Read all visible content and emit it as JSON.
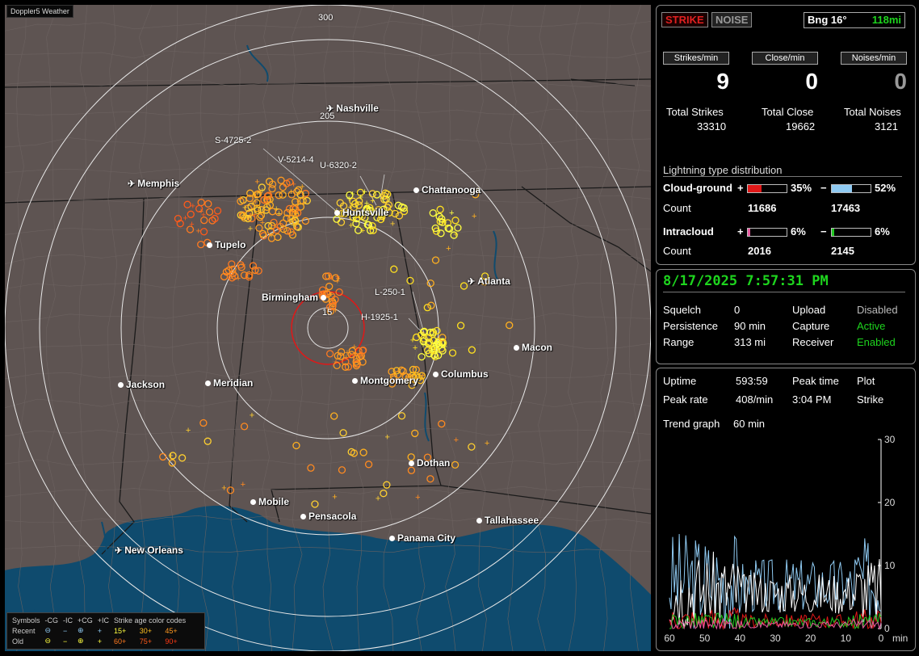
{
  "app": {
    "title": "Doppler5 Weather"
  },
  "colors": {
    "cg_positive": "#e01818",
    "cg_negative": "#8fcaf2",
    "ic_positive": "#e85aa0",
    "ic_negative": "#22c822",
    "status_green": "#1ed51e"
  },
  "map": {
    "ring_labels": [
      "300",
      "205",
      "15"
    ],
    "cell_labels": [
      "S-4725-2",
      "V-5214-4",
      "U-6320-2",
      "L-250-1",
      "H-1925-1"
    ],
    "cities": [
      {
        "name": "Nashville",
        "icon": "airport-icon"
      },
      {
        "name": "Memphis",
        "icon": "airport-icon"
      },
      {
        "name": "Chattanooga",
        "icon": "dot-icon"
      },
      {
        "name": "Huntsville",
        "icon": "dot-icon"
      },
      {
        "name": "Tupelo",
        "icon": "dot-icon"
      },
      {
        "name": "Atlanta",
        "icon": "airport-icon"
      },
      {
        "name": "Birmingham",
        "icon": "dot-icon"
      },
      {
        "name": "Macon",
        "icon": "dot-icon"
      },
      {
        "name": "Jackson",
        "icon": "dot-icon"
      },
      {
        "name": "Meridian",
        "icon": "dot-icon"
      },
      {
        "name": "Montgomery",
        "icon": "dot-icon"
      },
      {
        "name": "Columbus",
        "icon": "dot-icon"
      },
      {
        "name": "Dothan",
        "icon": "dot-icon"
      },
      {
        "name": "Mobile",
        "icon": "dot-icon"
      },
      {
        "name": "Pensacola",
        "icon": "dot-icon"
      },
      {
        "name": "Tallahassee",
        "icon": "dot-icon"
      },
      {
        "name": "Panama City",
        "icon": "dot-icon"
      },
      {
        "name": "New Orleans",
        "icon": "airport-icon"
      }
    ],
    "legend": {
      "header": [
        "Symbols",
        "-CG",
        "-IC",
        "+CG",
        "+IC",
        "Strike age color codes"
      ],
      "rows": [
        {
          "label": "Recent",
          "symbols": [
            "⊖",
            "−",
            "⊕",
            "+"
          ],
          "ages": [
            "15+",
            "30+",
            "45+"
          ]
        },
        {
          "label": "Old",
          "symbols": [
            "⊖",
            "−",
            "⊕",
            "+"
          ],
          "ages": [
            "60+",
            "75+",
            "90+"
          ]
        }
      ]
    }
  },
  "panel": {
    "buttons": {
      "strike": "STRIKE",
      "noise": "NOISE"
    },
    "bearing": {
      "label": "Bng 16°",
      "range": "118mi"
    },
    "rates": [
      {
        "label": "Strikes/min",
        "value": "9"
      },
      {
        "label": "Close/min",
        "value": "0"
      },
      {
        "label": "Noises/min",
        "value": "0"
      }
    ],
    "totals": [
      {
        "label": "Total Strikes",
        "value": "33310"
      },
      {
        "label": "Total Close",
        "value": "19662"
      },
      {
        "label": "Total Noises",
        "value": "3121"
      }
    ],
    "distribution": {
      "title": "Lightning type distribution",
      "cg": {
        "label": "Cloud-ground",
        "pos_sign": "+",
        "pos_pct": "35%",
        "pos_frac": 0.35,
        "neg_sign": "−",
        "neg_pct": "52%",
        "neg_frac": 0.52,
        "count_label": "Count",
        "pos_count": "11686",
        "neg_count": "17463"
      },
      "ic": {
        "label": "Intracloud",
        "pos_sign": "+",
        "pos_pct": "6%",
        "pos_frac": 0.06,
        "neg_sign": "−",
        "neg_pct": "6%",
        "neg_frac": 0.06,
        "count_label": "Count",
        "pos_count": "2016",
        "neg_count": "2145"
      }
    },
    "timestamp": "8/17/2025 7:57:31 PM",
    "settings": [
      {
        "label": "Squelch",
        "value": "0",
        "label2": "Upload",
        "value2": "Disabled",
        "v2green": false
      },
      {
        "label": "Persistence",
        "value": "90 min",
        "label2": "Capture",
        "value2": "Active",
        "v2green": true
      },
      {
        "label": "Range",
        "value": "313 mi",
        "label2": "Receiver",
        "value2": "Enabled",
        "v2green": true
      }
    ],
    "stats": {
      "uptime_label": "Uptime",
      "uptime": "593:59",
      "peak_time_label": "Peak time",
      "plot_label": "Plot",
      "peak_rate_label": "Peak rate",
      "peak_rate": "408/min",
      "peak_time": "3:04 PM",
      "plot": "Strike",
      "trend_label": "Trend graph",
      "trend": "60 min"
    },
    "graph": {
      "y_ticks": [
        "30",
        "20",
        "10",
        "0"
      ],
      "x_ticks": [
        "60",
        "50",
        "40",
        "30",
        "20",
        "10",
        "0"
      ],
      "x_unit": "min"
    }
  }
}
